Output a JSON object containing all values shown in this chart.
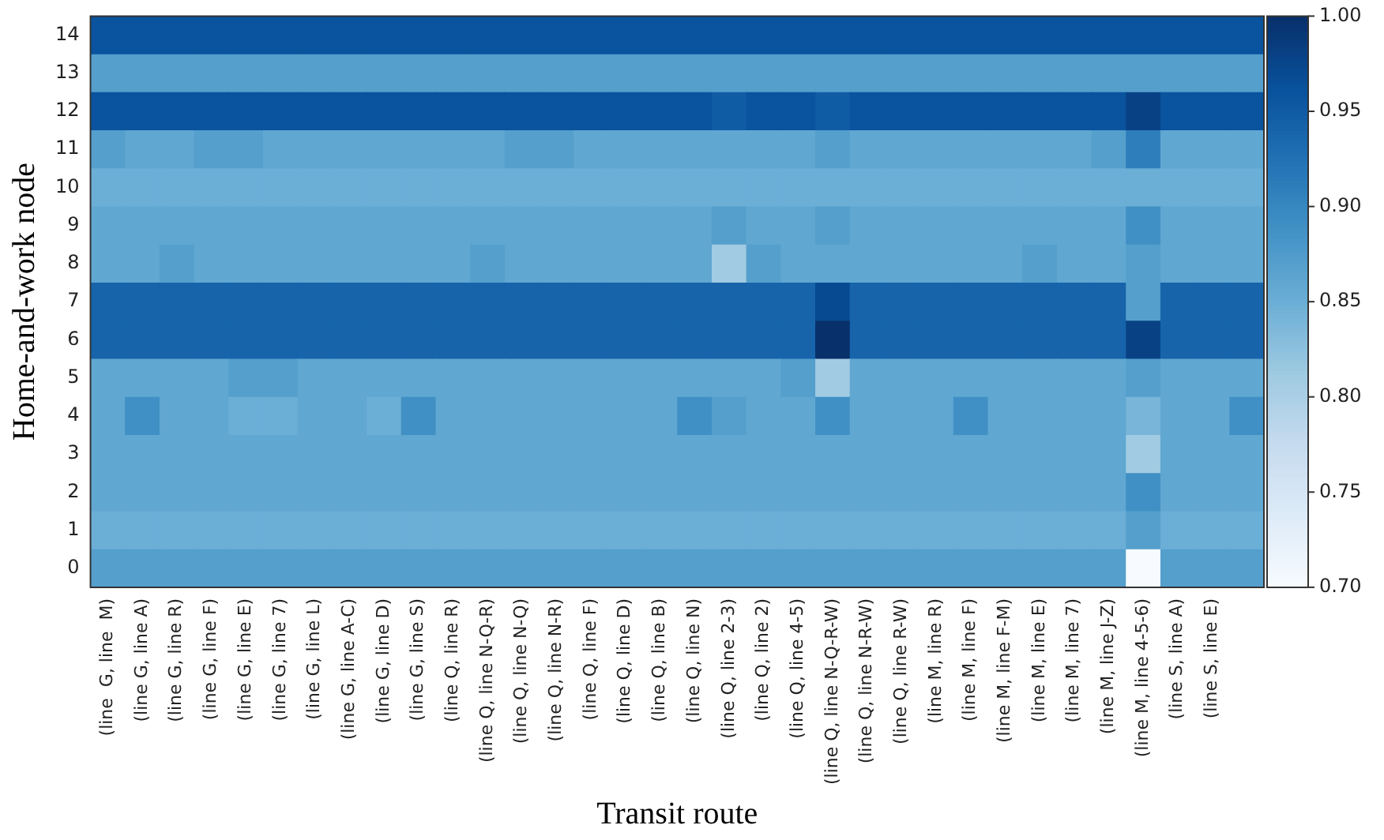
{
  "chart_data": {
    "type": "heatmap",
    "xlabel": "Transit route",
    "ylabel": "Home-and-work node",
    "categories": [
      "(line  G, line  M)",
      "(line G, line A)",
      "(line G, line R)",
      "(line G, line F)",
      "(line G, line E)",
      "(line G, line 7)",
      "(line G, line L)",
      "(line G, line A-C)",
      "(line G, line D)",
      "(line G, line S)",
      "(line Q, line R)",
      "(line Q, line N-Q-R)",
      "(line Q, line N-Q)",
      "(line Q, line N-R)",
      "(line Q, line F)",
      "(line Q, line D)",
      "(line Q, line B)",
      "(line Q, line N)",
      "(line Q, line 2-3)",
      "(line Q, line 2)",
      "(line Q, line 4-5)",
      "(line Q, line N-Q-R-W)",
      "(line Q, line N-R-W)",
      "(line Q, line R-W)",
      "(line M, line R)",
      "(line M, line F)",
      "(line M, line F-M)",
      "(line M, line E)",
      "(line M, line 7)",
      "(line M, line J-Z)",
      "(line M, line 4-5-6)",
      "(line S, line A)",
      "(line S, line E)",
      null
    ],
    "y_categories": [
      "14",
      "13",
      "12",
      "11",
      "10",
      "9",
      "8",
      "7",
      "6",
      "5",
      "4",
      "3",
      "2",
      "1",
      "0"
    ],
    "cells": [
      [
        0.96,
        0.96,
        0.96,
        0.96,
        0.96,
        0.96,
        0.96,
        0.96,
        0.96,
        0.96,
        0.96,
        0.96,
        0.96,
        0.96,
        0.96,
        0.96,
        0.96,
        0.96,
        0.96,
        0.96,
        0.96,
        0.96,
        0.96,
        0.96,
        0.96,
        0.96,
        0.96,
        0.96,
        0.96,
        0.96,
        0.96,
        0.96,
        0.96,
        0.96
      ],
      [
        0.87,
        0.87,
        0.87,
        0.87,
        0.87,
        0.87,
        0.87,
        0.87,
        0.87,
        0.87,
        0.87,
        0.87,
        0.87,
        0.87,
        0.87,
        0.87,
        0.87,
        0.87,
        0.87,
        0.87,
        0.87,
        0.87,
        0.87,
        0.87,
        0.87,
        0.87,
        0.87,
        0.87,
        0.87,
        0.87,
        0.87,
        0.87,
        0.87,
        0.87
      ],
      [
        0.96,
        0.96,
        0.96,
        0.96,
        0.96,
        0.96,
        0.96,
        0.96,
        0.96,
        0.96,
        0.96,
        0.96,
        0.96,
        0.96,
        0.96,
        0.96,
        0.96,
        0.96,
        0.95,
        0.96,
        0.96,
        0.95,
        0.96,
        0.96,
        0.96,
        0.96,
        0.96,
        0.96,
        0.96,
        0.96,
        0.98,
        0.96,
        0.96,
        0.96
      ],
      [
        0.87,
        0.86,
        0.86,
        0.87,
        0.87,
        0.86,
        0.86,
        0.86,
        0.86,
        0.86,
        0.86,
        0.86,
        0.87,
        0.87,
        0.86,
        0.86,
        0.86,
        0.86,
        0.86,
        0.86,
        0.86,
        0.87,
        0.86,
        0.86,
        0.86,
        0.86,
        0.86,
        0.86,
        0.86,
        0.87,
        0.91,
        0.86,
        0.86,
        0.86
      ],
      [
        0.85,
        0.85,
        0.85,
        0.85,
        0.85,
        0.85,
        0.85,
        0.85,
        0.85,
        0.85,
        0.85,
        0.85,
        0.85,
        0.85,
        0.85,
        0.85,
        0.85,
        0.85,
        0.85,
        0.85,
        0.85,
        0.85,
        0.85,
        0.85,
        0.85,
        0.85,
        0.85,
        0.85,
        0.85,
        0.85,
        0.85,
        0.85,
        0.85,
        0.85
      ],
      [
        0.86,
        0.86,
        0.86,
        0.86,
        0.86,
        0.86,
        0.86,
        0.86,
        0.86,
        0.86,
        0.86,
        0.86,
        0.86,
        0.86,
        0.86,
        0.86,
        0.86,
        0.86,
        0.87,
        0.86,
        0.86,
        0.87,
        0.86,
        0.86,
        0.86,
        0.86,
        0.86,
        0.86,
        0.86,
        0.86,
        0.89,
        0.86,
        0.86,
        0.86
      ],
      [
        0.86,
        0.86,
        0.87,
        0.86,
        0.86,
        0.86,
        0.86,
        0.86,
        0.86,
        0.86,
        0.86,
        0.87,
        0.86,
        0.86,
        0.86,
        0.86,
        0.86,
        0.86,
        0.81,
        0.87,
        0.86,
        0.86,
        0.86,
        0.86,
        0.86,
        0.86,
        0.86,
        0.87,
        0.86,
        0.86,
        0.87,
        0.86,
        0.86,
        0.86
      ],
      [
        0.94,
        0.94,
        0.94,
        0.94,
        0.94,
        0.94,
        0.94,
        0.94,
        0.94,
        0.94,
        0.94,
        0.94,
        0.94,
        0.94,
        0.94,
        0.94,
        0.94,
        0.94,
        0.94,
        0.94,
        0.94,
        0.97,
        0.94,
        0.94,
        0.94,
        0.94,
        0.94,
        0.94,
        0.94,
        0.94,
        0.87,
        0.94,
        0.94,
        0.94
      ],
      [
        0.94,
        0.94,
        0.94,
        0.94,
        0.94,
        0.94,
        0.94,
        0.94,
        0.94,
        0.94,
        0.94,
        0.94,
        0.94,
        0.94,
        0.94,
        0.94,
        0.94,
        0.94,
        0.94,
        0.94,
        0.94,
        1.0,
        0.94,
        0.94,
        0.94,
        0.94,
        0.94,
        0.94,
        0.94,
        0.94,
        0.98,
        0.94,
        0.94,
        0.94
      ],
      [
        0.86,
        0.86,
        0.86,
        0.86,
        0.87,
        0.87,
        0.86,
        0.86,
        0.86,
        0.86,
        0.86,
        0.86,
        0.86,
        0.86,
        0.86,
        0.86,
        0.86,
        0.86,
        0.86,
        0.86,
        0.87,
        0.81,
        0.86,
        0.86,
        0.86,
        0.86,
        0.86,
        0.86,
        0.86,
        0.86,
        0.87,
        0.86,
        0.86,
        0.86
      ],
      [
        0.86,
        0.89,
        0.86,
        0.86,
        0.85,
        0.85,
        0.86,
        0.86,
        0.85,
        0.89,
        0.86,
        0.86,
        0.86,
        0.86,
        0.86,
        0.86,
        0.86,
        0.89,
        0.87,
        0.86,
        0.86,
        0.89,
        0.86,
        0.86,
        0.86,
        0.89,
        0.86,
        0.86,
        0.86,
        0.86,
        0.84,
        0.86,
        0.86,
        0.89
      ],
      [
        0.86,
        0.86,
        0.86,
        0.86,
        0.86,
        0.86,
        0.86,
        0.86,
        0.86,
        0.86,
        0.86,
        0.86,
        0.86,
        0.86,
        0.86,
        0.86,
        0.86,
        0.86,
        0.86,
        0.86,
        0.86,
        0.86,
        0.86,
        0.86,
        0.86,
        0.86,
        0.86,
        0.86,
        0.86,
        0.86,
        0.81,
        0.86,
        0.86,
        0.86
      ],
      [
        0.86,
        0.86,
        0.86,
        0.86,
        0.86,
        0.86,
        0.86,
        0.86,
        0.86,
        0.86,
        0.86,
        0.86,
        0.86,
        0.86,
        0.86,
        0.86,
        0.86,
        0.86,
        0.86,
        0.86,
        0.86,
        0.86,
        0.86,
        0.86,
        0.86,
        0.86,
        0.86,
        0.86,
        0.86,
        0.86,
        0.89,
        0.86,
        0.86,
        0.86
      ],
      [
        0.85,
        0.85,
        0.85,
        0.85,
        0.85,
        0.85,
        0.85,
        0.85,
        0.85,
        0.85,
        0.85,
        0.85,
        0.85,
        0.85,
        0.85,
        0.85,
        0.85,
        0.85,
        0.85,
        0.85,
        0.85,
        0.85,
        0.85,
        0.85,
        0.85,
        0.85,
        0.85,
        0.85,
        0.85,
        0.85,
        0.87,
        0.85,
        0.85,
        0.85
      ],
      [
        0.87,
        0.87,
        0.87,
        0.87,
        0.87,
        0.87,
        0.87,
        0.87,
        0.87,
        0.87,
        0.87,
        0.87,
        0.87,
        0.87,
        0.87,
        0.87,
        0.87,
        0.87,
        0.87,
        0.87,
        0.87,
        0.87,
        0.87,
        0.87,
        0.87,
        0.87,
        0.87,
        0.87,
        0.87,
        0.87,
        0.7,
        0.87,
        0.87,
        0.87
      ]
    ],
    "clim": [
      0.7,
      1.0
    ],
    "cticks": [
      {
        "value": 0.7,
        "label": "0.70"
      },
      {
        "value": 0.75,
        "label": "0.75"
      },
      {
        "value": 0.8,
        "label": "0.80"
      },
      {
        "value": 0.85,
        "label": "0.85"
      },
      {
        "value": 0.9,
        "label": "0.90"
      },
      {
        "value": 0.95,
        "label": "0.95"
      },
      {
        "value": 1.0,
        "label": "1.00"
      }
    ]
  }
}
